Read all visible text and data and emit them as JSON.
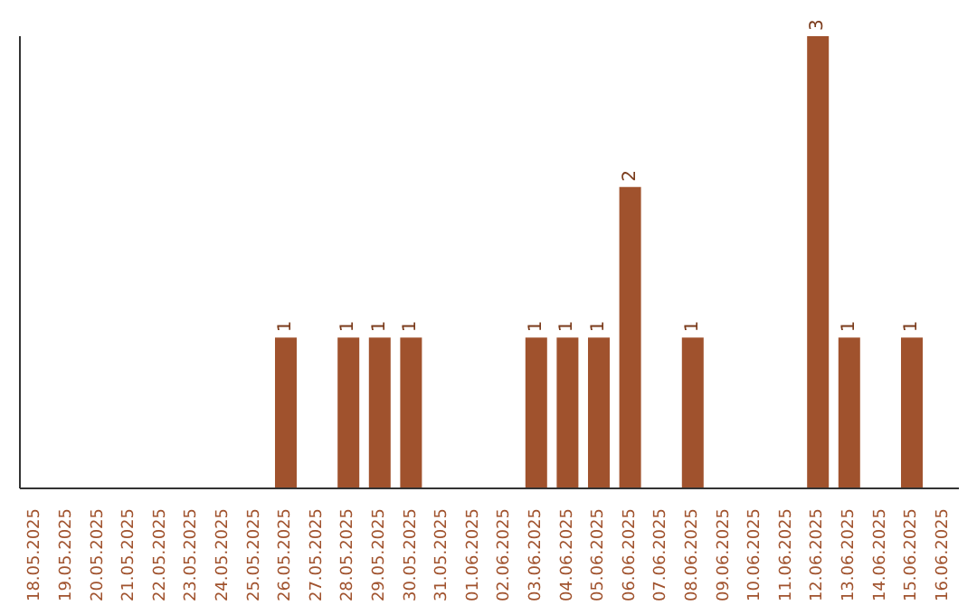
{
  "chart_data": {
    "type": "bar",
    "categories": [
      "18.05.2025",
      "19.05.2025",
      "20.05.2025",
      "21.05.2025",
      "22.05.2025",
      "23.05.2025",
      "24.05.2025",
      "25.05.2025",
      "26.05.2025",
      "27.05.2025",
      "28.05.2025",
      "29.05.2025",
      "30.05.2025",
      "31.05.2025",
      "01.06.2025",
      "02.06.2025",
      "03.06.2025",
      "04.06.2025",
      "05.06.2025",
      "06.06.2025",
      "07.06.2025",
      "08.06.2025",
      "09.06.2025",
      "10.06.2025",
      "11.06.2025",
      "12.06.2025",
      "13.06.2025",
      "14.06.2025",
      "15.06.2025",
      "16.06.2025"
    ],
    "values": [
      0,
      0,
      0,
      0,
      0,
      0,
      0,
      0,
      1,
      0,
      1,
      1,
      1,
      0,
      0,
      0,
      1,
      1,
      1,
      2,
      0,
      1,
      0,
      0,
      0,
      3,
      1,
      0,
      1,
      0
    ],
    "value_labels": [
      null,
      null,
      null,
      null,
      null,
      null,
      null,
      null,
      "1",
      null,
      "1",
      "1",
      "1",
      null,
      null,
      null,
      "1",
      "1",
      "1",
      "2",
      null,
      "1",
      null,
      null,
      null,
      "3",
      "1",
      null,
      "1",
      null
    ],
    "color": "#a0522d"
  }
}
